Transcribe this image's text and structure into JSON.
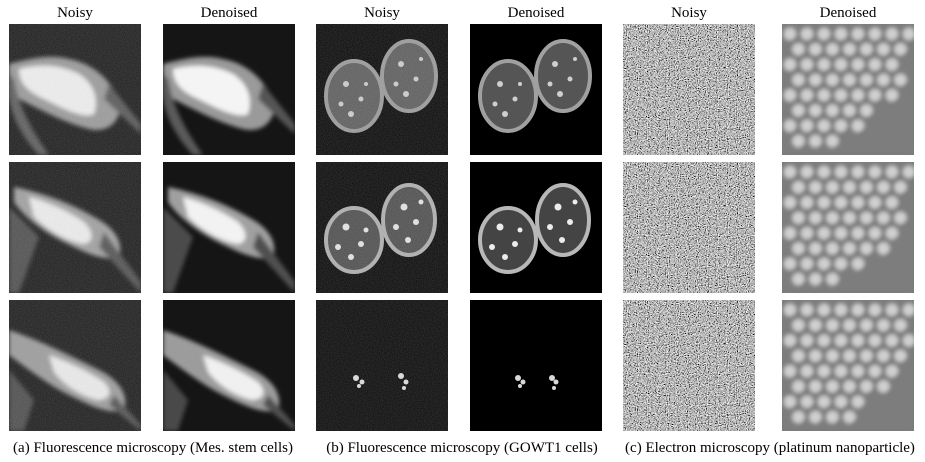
{
  "figure": {
    "headers": [
      "Noisy",
      "Denoised",
      "Noisy",
      "Denoised",
      "Noisy",
      "Denoised"
    ],
    "captions": [
      "(a) Fluorescence microscopy (Mes. stem cells)",
      "(b) Fluorescence microscopy (GOWT1 cells)",
      "(c) Electron microscopy (platinum nanoparticle)"
    ]
  }
}
